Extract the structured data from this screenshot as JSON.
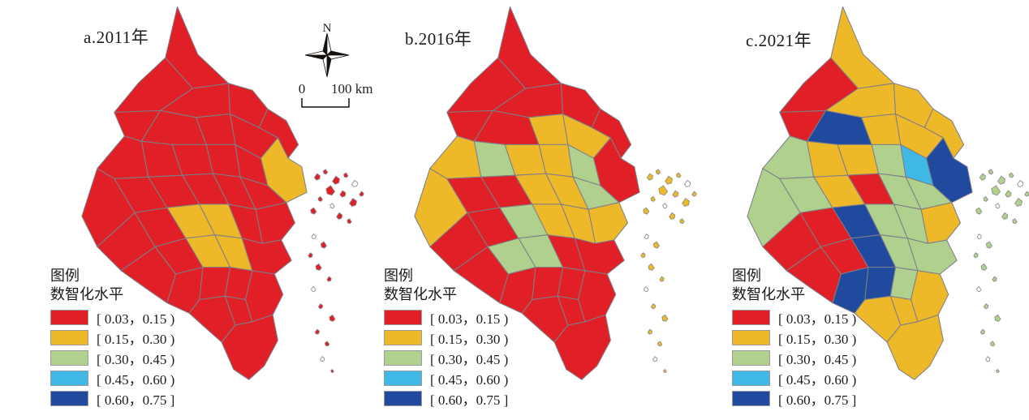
{
  "figure": {
    "panels": [
      {
        "label": "a.2011年",
        "year": "2011"
      },
      {
        "label": "b.2016年",
        "year": "2016"
      },
      {
        "label": "c.2021年",
        "year": "2021"
      }
    ],
    "legend": {
      "title": "图例",
      "subtitle": "数智化水平"
    },
    "north_label": "N",
    "scale": {
      "zero": "0",
      "hundred": "100 km"
    },
    "colors": {
      "map_border": "#7e7e88",
      "island_border": "#8a8a8a",
      "text": "#1e1a19"
    }
  },
  "chart_data": {
    "type": "choropleth",
    "variable": "数智化水平",
    "years": [
      "2011",
      "2016",
      "2021"
    ],
    "classes": [
      {
        "label": "[ 0.03，0.15 )",
        "range_min": 0.03,
        "range_max": 0.15,
        "color": "#e01f26"
      },
      {
        "label": "[ 0.15，0.30 )",
        "range_min": 0.15,
        "range_max": 0.3,
        "color": "#eeb929"
      },
      {
        "label": "[ 0.30，0.45 )",
        "range_min": 0.3,
        "range_max": 0.45,
        "color": "#b0d18d"
      },
      {
        "label": "[ 0.45，0.60 )",
        "range_min": 0.45,
        "range_max": 0.6,
        "color": "#3fb8e5"
      },
      {
        "label": "[ 0.60，0.75 ]",
        "range_min": 0.6,
        "range_max": 0.75,
        "color": "#1f4a9d"
      }
    ],
    "region_ids": [
      "R01",
      "R02",
      "R03",
      "R04",
      "R05",
      "R06",
      "R07",
      "R08",
      "R09",
      "R10",
      "R11",
      "R12",
      "R13",
      "R14",
      "R15",
      "R16",
      "R17",
      "R18",
      "R19",
      "R20",
      "R21",
      "R22",
      "R23",
      "R24",
      "R25",
      "R26",
      "R27",
      "R28",
      "R29",
      "R30",
      "R31",
      "R32",
      "R33",
      "R34",
      "R35",
      "R36",
      "R37",
      "R38",
      "R39",
      "islands"
    ],
    "levels_by_year": {
      "2011": [
        0,
        0,
        0,
        0,
        0,
        0,
        0,
        0,
        0,
        0,
        1,
        0,
        0,
        0,
        0,
        0,
        0,
        0,
        0,
        0,
        0,
        0,
        0,
        1,
        1,
        0,
        0,
        0,
        0,
        1,
        1,
        0,
        0,
        0,
        0,
        0,
        0,
        0,
        0,
        0
      ],
      "2016": [
        0,
        0,
        0,
        0,
        0,
        0,
        1,
        0,
        1,
        1,
        0,
        1,
        2,
        1,
        1,
        2,
        0,
        0,
        1,
        1,
        2,
        0,
        0,
        2,
        1,
        1,
        1,
        0,
        2,
        2,
        0,
        0,
        0,
        0,
        0,
        0,
        0,
        0,
        0,
        1
      ],
      "2021": [
        1,
        0,
        1,
        1,
        1,
        0,
        2,
        4,
        1,
        1,
        4,
        2,
        1,
        1,
        2,
        3,
        2,
        1,
        0,
        2,
        2,
        0,
        0,
        4,
        2,
        2,
        1,
        0,
        0,
        4,
        2,
        2,
        4,
        4,
        2,
        1,
        1,
        1,
        1,
        2
      ]
    }
  }
}
